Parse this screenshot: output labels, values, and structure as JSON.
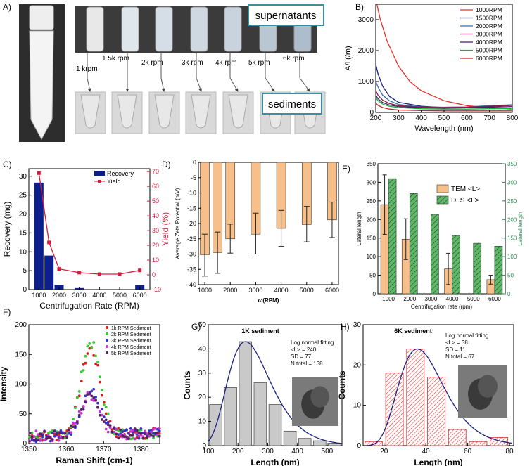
{
  "panel_labels": [
    "A)",
    "B)",
    "C)",
    "D)",
    "E)",
    "F)",
    "G)",
    "H)"
  ],
  "panel_a": {
    "supernatants_label": "supernatants",
    "sediments_label": "sediments",
    "rpm_labels": [
      "1 krpm",
      "1.5k rpm",
      "2k rpm",
      "3k rpm",
      "4k rpm",
      "5k rpm",
      "6k rpm"
    ],
    "colors": {
      "box_border": "#3a8fa0",
      "background": "#d9d9d9"
    }
  },
  "chart_data": [
    {
      "id": "B",
      "type": "line",
      "xlabel": "Wavelength (nm)",
      "ylabel": "A/l (/m)",
      "xlim": [
        200,
        800
      ],
      "ylim": [
        0,
        3500
      ],
      "xticks": [
        200,
        300,
        400,
        500,
        600,
        700,
        800
      ],
      "yticks": [
        0,
        1000,
        2000,
        3000
      ],
      "series": [
        {
          "name": "1000RPM",
          "color": "#e8302a",
          "x": [
            205,
            220,
            250,
            300,
            350,
            400,
            500,
            600,
            700,
            800
          ],
          "y": [
            3500,
            3000,
            2300,
            1500,
            1000,
            700,
            380,
            220,
            150,
            110
          ]
        },
        {
          "name": "1500RPM",
          "color": "#1a237e",
          "x": [
            200,
            210,
            230,
            260,
            300,
            400,
            500,
            600,
            700,
            800
          ],
          "y": [
            1550,
            1250,
            850,
            520,
            330,
            200,
            160,
            150,
            190,
            230
          ]
        },
        {
          "name": "2000RPM",
          "color": "#3c6ea8",
          "x": [
            200,
            210,
            230,
            260,
            300,
            400,
            500,
            600,
            700,
            800
          ],
          "y": [
            1000,
            820,
            560,
            380,
            260,
            180,
            170,
            180,
            220,
            250
          ]
        },
        {
          "name": "3000RPM",
          "color": "#8b1a4a",
          "x": [
            200,
            210,
            230,
            260,
            300,
            400,
            500,
            600,
            700,
            800
          ],
          "y": [
            700,
            560,
            400,
            290,
            220,
            170,
            160,
            170,
            200,
            230
          ]
        },
        {
          "name": "4000RPM",
          "color": "#4a1a6a",
          "x": [
            200,
            210,
            230,
            260,
            300,
            400,
            500,
            600,
            700,
            800
          ],
          "y": [
            560,
            440,
            320,
            240,
            190,
            150,
            140,
            150,
            170,
            190
          ]
        },
        {
          "name": "5000RPM",
          "color": "#19b23b",
          "x": [
            200,
            210,
            230,
            260,
            300,
            400,
            500,
            600,
            700,
            800
          ],
          "y": [
            480,
            380,
            270,
            200,
            160,
            120,
            110,
            110,
            120,
            130
          ]
        },
        {
          "name": "6000RPM",
          "color": "#c62828",
          "x": [
            200,
            210,
            230,
            260,
            300,
            400,
            500,
            600,
            700,
            800
          ],
          "y": [
            300,
            230,
            160,
            110,
            80,
            60,
            50,
            50,
            50,
            50
          ]
        }
      ]
    },
    {
      "id": "C",
      "type": "bar",
      "xlabel": "Centrifugation Rate (RPM)",
      "ylabel": "Recovery (mg)",
      "y2label": "Yield (%)",
      "xlim": [
        500,
        6500
      ],
      "ylim": [
        0,
        32
      ],
      "y2lim": [
        -10,
        72
      ],
      "xticks": [
        1000,
        2000,
        3000,
        4000,
        5000,
        6000
      ],
      "yticks": [
        0,
        5,
        10,
        15,
        20,
        25,
        30
      ],
      "y2ticks": [
        -10,
        0,
        10,
        20,
        30,
        40,
        50,
        60,
        70
      ],
      "legend": [
        "Recovery",
        "Yield"
      ],
      "colors": {
        "bar": "#0d1f8c",
        "line": "#d81b3c"
      },
      "bars": {
        "x": [
          1000,
          1500,
          2000,
          3000,
          6000
        ],
        "values": [
          28.3,
          9.0,
          1.3,
          0.4,
          1.2
        ]
      },
      "line": {
        "x": [
          1000,
          1500,
          2000,
          3000,
          4000,
          5000,
          6000
        ],
        "values": [
          69,
          22,
          4,
          1.5,
          0.5,
          0.5,
          3
        ]
      }
    },
    {
      "id": "D",
      "type": "bar",
      "xlabel": "ω(RPM)",
      "ylabel": "Average Zeta Potential (mV)",
      "xlim": [
        750,
        6250
      ],
      "ylim": [
        -40,
        0
      ],
      "xticks": [
        1000,
        2000,
        3000,
        4000,
        5000,
        6000
      ],
      "yticks": [
        -40,
        -35,
        -30,
        -25,
        -20,
        -15,
        -10,
        -5,
        0
      ],
      "colors": {
        "bar": "#f7c08a",
        "edge": "#333333"
      },
      "bars": {
        "x": [
          1000,
          1500,
          2000,
          3000,
          4000,
          5000,
          6000
        ],
        "values": [
          -30.2,
          -29.5,
          -25,
          -23.5,
          -21.6,
          -20.3,
          -18.8
        ],
        "means": [
          -23.5,
          -22.8,
          -20.2,
          -16.6,
          -15.7,
          -14.4,
          -13
        ],
        "err_low": [
          -37.2,
          -36.3,
          -29.7,
          -30,
          -27.5,
          -26,
          -24.6
        ]
      }
    },
    {
      "id": "E",
      "type": "bar",
      "xlabel": "Centrifugation rate (rpm)",
      "ylabel": "Lateral length",
      "y2label": "Lateral length",
      "categories": [
        "1000",
        "2000",
        "3000",
        "4000",
        "5000",
        "6000"
      ],
      "ylim": [
        0,
        350
      ],
      "yticks": [
        0,
        50,
        100,
        150,
        200,
        250,
        300,
        350
      ],
      "legend": [
        "TEM <L>",
        "DLS <L>"
      ],
      "colors": {
        "tem": "#f7c08a",
        "dls": "#5fb86a",
        "y2axis": "#2e8b57"
      },
      "series": [
        {
          "name": "TEM <L>",
          "values": [
            240,
            147,
            null,
            67,
            null,
            38
          ],
          "err": [
            80,
            55,
            null,
            42,
            null,
            12
          ]
        },
        {
          "name": "DLS <L>",
          "values": [
            310,
            270,
            214,
            157,
            136,
            128
          ]
        }
      ]
    },
    {
      "id": "F",
      "type": "scatter",
      "xlabel": "Raman Shift (cm-1)",
      "ylabel": "Intensity",
      "xlim": [
        1350,
        1385
      ],
      "ylim": [
        0,
        200
      ],
      "xticks": [
        1350,
        1360,
        1370,
        1380
      ],
      "yticks": [
        0,
        50,
        100,
        150,
        200
      ],
      "series": [
        {
          "name": "1k RPM Sediment",
          "color": "#e41a1c",
          "center": 1366.5,
          "peak": 160
        },
        {
          "name": "2k RPM Sediment",
          "color": "#33cc33",
          "center": 1366.5,
          "peak": 170
        },
        {
          "name": "3k RPM Sediment",
          "color": "#3333cc",
          "center": 1366.5,
          "peak": 88
        },
        {
          "name": "4k RPM Sediment",
          "color": "#cc33cc",
          "center": 1366.5,
          "peak": 82
        },
        {
          "name": "5k RPM Sediment",
          "color": "#552266",
          "center": 1366.5,
          "peak": 80
        }
      ]
    },
    {
      "id": "G",
      "type": "bar",
      "title": "1K sediment",
      "xlabel": "Length (nm)",
      "ylabel": "Counts",
      "xlim": [
        100,
        550
      ],
      "ylim": [
        0,
        50
      ],
      "xticks": [
        100,
        200,
        300,
        400,
        500
      ],
      "yticks": [
        0,
        10,
        20,
        30,
        40,
        50
      ],
      "bins": [
        125,
        175,
        225,
        275,
        325,
        375,
        425,
        475,
        525
      ],
      "values": [
        17,
        24,
        43,
        26,
        17,
        6,
        3,
        2,
        1
      ],
      "annotation": [
        "Log normal fitting",
        "<L> = 240",
        "SD = 77",
        "N total = 138"
      ]
    },
    {
      "id": "H",
      "type": "bar",
      "title": "6K sediment",
      "xlabel": "Length (nm)",
      "ylabel": "Counts",
      "xlim": [
        10,
        82
      ],
      "ylim": [
        0,
        30
      ],
      "xticks": [
        20,
        40,
        60,
        80
      ],
      "yticks": [
        0,
        10,
        20,
        30
      ],
      "bins": [
        15,
        25,
        35,
        45,
        55,
        65,
        75
      ],
      "values": [
        1,
        18,
        24,
        17,
        4,
        1,
        2
      ],
      "annotation": [
        "Log normal fitting",
        "<L> = 38",
        "SD = 11",
        "N total = 67"
      ]
    }
  ]
}
